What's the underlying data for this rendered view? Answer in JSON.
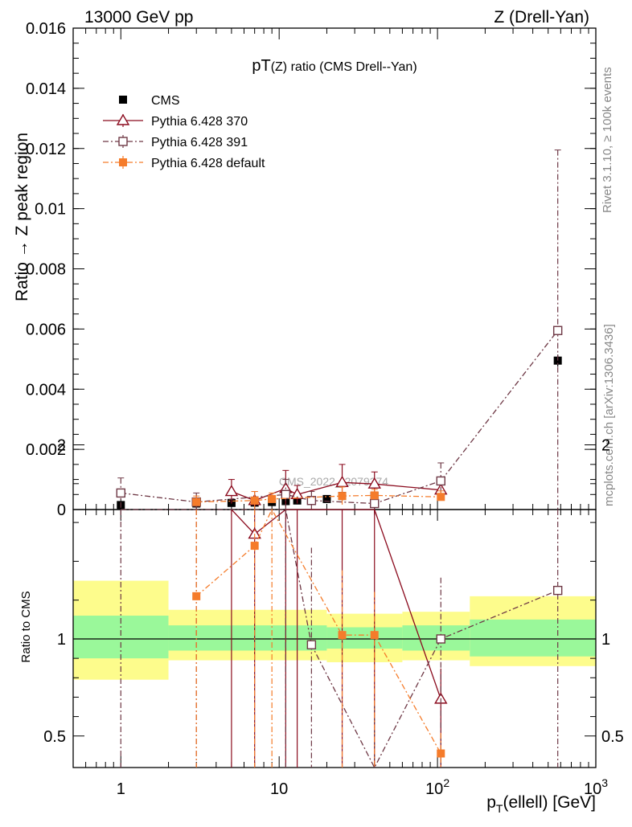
{
  "header": {
    "left": "13000 GeV pp",
    "right": "Z (Drell-Yan)"
  },
  "side_labels": {
    "rivet": "Rivet 3.1.10, ≥ 100k events",
    "mcplots": "mcplots.cern.ch [arXiv:1306.3436]"
  },
  "watermark": "CMS_2022_I2079374",
  "chart_data": {
    "type": "scatter",
    "title": "pT(Z) ratio (CMS Drell--Yan)",
    "title_parts": {
      "pre": "pT",
      "mid": "(Z)",
      "post": " ratio (CMS Drell--Yan)"
    },
    "ylabel": "Ratio → Z peak region",
    "xlabel": "p_T(ellell) [GeV]",
    "xlabel_parts": {
      "p": "p",
      "sub": "T",
      "rest": "(ellell) [GeV]"
    },
    "ratio_ylabel": "Ratio to CMS",
    "xscale": "log",
    "xlim": [
      0.5,
      1000
    ],
    "ylim": [
      0,
      0.016
    ],
    "ratio_ylim": [
      0.34,
      2.3
    ],
    "legend_position": "top-left",
    "x_ticks": [
      {
        "v": 1,
        "base": "1",
        "exp": ""
      },
      {
        "v": 10,
        "base": "10",
        "exp": ""
      },
      {
        "v": 100,
        "base": "10",
        "exp": "2"
      },
      {
        "v": 1000,
        "base": "10",
        "exp": "3"
      }
    ],
    "y_ticks": [
      "0",
      "0.002",
      "0.004",
      "0.006",
      "0.008",
      "0.01",
      "0.012",
      "0.014",
      "0.016"
    ],
    "ratio_ticks": [
      "0.5",
      "1",
      "2"
    ],
    "series": [
      {
        "name": "CMS",
        "color": "#000000",
        "marker": "square-filled",
        "dash": "none",
        "x": [
          1,
          3,
          5,
          7,
          9,
          11,
          13,
          16,
          20,
          25,
          40,
          105,
          575
        ],
        "y": [
          0.00015,
          0.0002,
          0.00022,
          0.00023,
          0.00025,
          0.00028,
          0.0003,
          0.0003,
          0.00035,
          0.00045,
          0.00045,
          0.00095,
          0.00495
        ],
        "err": [
          2e-05,
          3e-05,
          3e-05,
          3e-05,
          3e-05,
          3e-05,
          3e-05,
          3e-05,
          3e-05,
          4e-05,
          6e-05,
          8e-05,
          0.0002
        ]
      },
      {
        "name": "Pythia 6.428 370",
        "color": "#8b0b1e",
        "marker": "triangle-open",
        "dash": "none",
        "x": [
          5,
          7,
          11,
          13,
          25,
          40,
          105
        ],
        "y": [
          0.0006,
          0.0003,
          0.0007,
          0.0005,
          0.0009,
          0.00085,
          0.00065
        ],
        "err": [
          0.0004,
          0.0003,
          0.0006,
          0.0003,
          0.0006,
          0.0004,
          0.0003
        ],
        "ratio": [
          2.8,
          1.54,
          2.6,
          1.78,
          2.15,
          1.88,
          0.69
        ]
      },
      {
        "name": "Pythia 6.428 391",
        "color": "#6e3845",
        "marker": "square-open",
        "dash": "7 3 2 3",
        "x": [
          1,
          3,
          11,
          16,
          40,
          105,
          575
        ],
        "y": [
          0.00055,
          0.00025,
          0.0005,
          0.0003,
          0.0002,
          0.00095,
          0.00595
        ],
        "err": [
          0.0005,
          0.0003,
          0.0005,
          0.0003,
          0.0003,
          0.0006,
          0.006
        ],
        "ratio": [
          3.1,
          1.67,
          1.74,
          0.97,
          0.32,
          1.0,
          1.25
        ]
      },
      {
        "name": "Pythia 6.428 default",
        "color": "#f57c2b",
        "marker": "square-filled",
        "dash": "7 3 2 3",
        "x": [
          3,
          7,
          9,
          25,
          40,
          105
        ],
        "y": [
          0.00025,
          0.0003,
          0.00035,
          0.00045,
          0.00047,
          0.00042
        ],
        "err": [
          0.0002,
          0.0003,
          0.0002,
          0.0003,
          0.0002,
          0.0002
        ],
        "ratio": [
          1.22,
          1.48,
          1.75,
          1.02,
          1.02,
          0.41
        ]
      }
    ],
    "bands": [
      {
        "x0": 0.5,
        "x1": 2,
        "inner": [
          0.9,
          1.12
        ],
        "outer": [
          0.79,
          1.3
        ]
      },
      {
        "x0": 2,
        "x1": 20,
        "inner": [
          0.94,
          1.07
        ],
        "outer": [
          0.89,
          1.15
        ]
      },
      {
        "x0": 20,
        "x1": 60,
        "inner": [
          0.95,
          1.06
        ],
        "outer": [
          0.88,
          1.13
        ]
      },
      {
        "x0": 60,
        "x1": 160,
        "inner": [
          0.94,
          1.07
        ],
        "outer": [
          0.89,
          1.14
        ]
      },
      {
        "x0": 160,
        "x1": 1000,
        "inner": [
          0.91,
          1.1
        ],
        "outer": [
          0.86,
          1.22
        ]
      }
    ]
  }
}
